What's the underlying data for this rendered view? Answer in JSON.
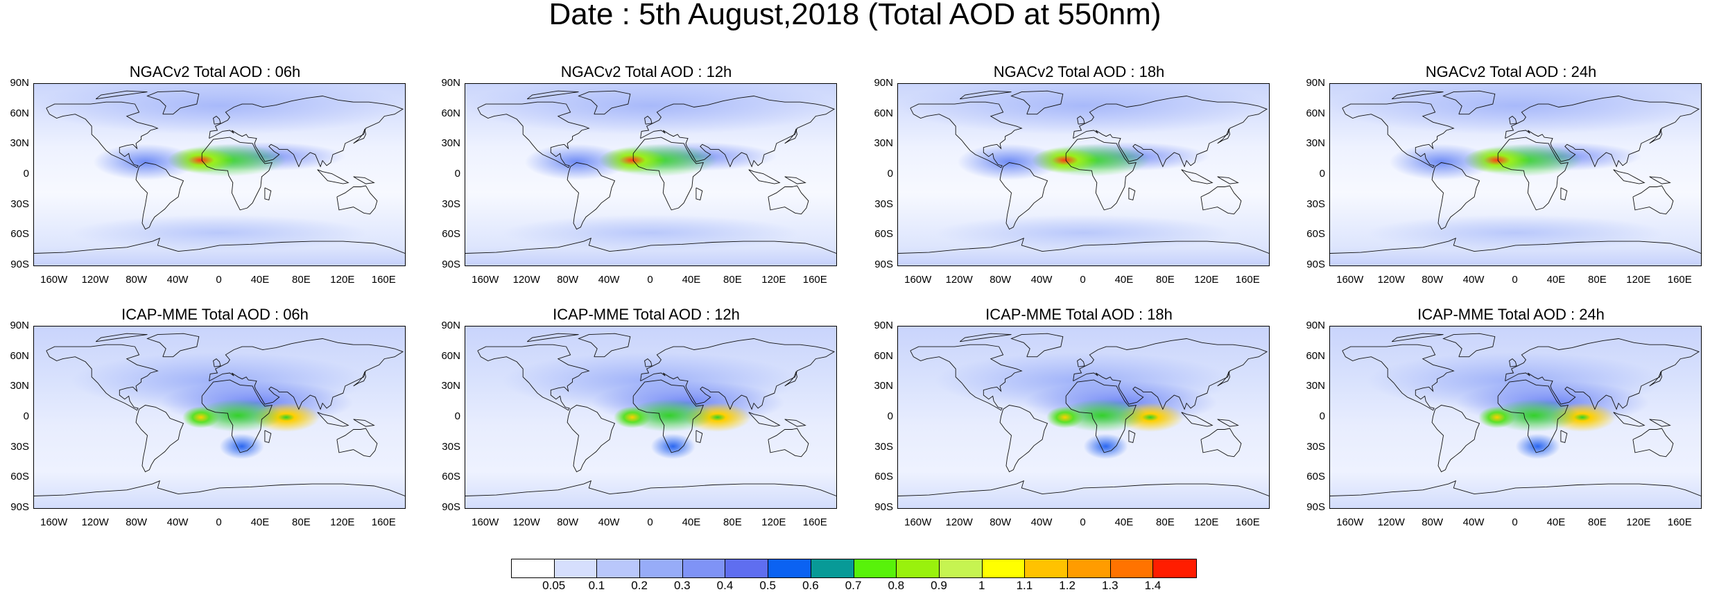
{
  "main_title": "Date : 5th August,2018 (Total AOD at 550nm)",
  "panels": [
    {
      "title": "NGACv2 Total AOD : 06h",
      "model": "ngac"
    },
    {
      "title": "NGACv2 Total AOD : 12h",
      "model": "ngac"
    },
    {
      "title": "NGACv2 Total AOD : 18h",
      "model": "ngac"
    },
    {
      "title": "NGACv2 Total AOD : 24h",
      "model": "ngac"
    },
    {
      "title": "ICAP-MME Total AOD : 06h",
      "model": "icap"
    },
    {
      "title": "ICAP-MME Total AOD : 12h",
      "model": "icap"
    },
    {
      "title": "ICAP-MME Total AOD : 18h",
      "model": "icap"
    },
    {
      "title": "ICAP-MME Total AOD : 24h",
      "model": "icap"
    }
  ],
  "lat_ticks": [
    "90N",
    "60N",
    "30N",
    "0",
    "30S",
    "60S",
    "90S"
  ],
  "lon_ticks": [
    "160W",
    "120W",
    "80W",
    "40W",
    "0",
    "40E",
    "80E",
    "120E",
    "160E"
  ],
  "lon_tick_values": [
    -160,
    -120,
    -80,
    -40,
    0,
    40,
    80,
    120,
    160
  ],
  "colorbar": {
    "colors": [
      "#ffffff",
      "#d6dffd",
      "#b9c7fb",
      "#97acf8",
      "#7f93f6",
      "#5f6ef0",
      "#0b62f2",
      "#089a97",
      "#58f20a",
      "#99f10d",
      "#c6f451",
      "#ffff00",
      "#ffc200",
      "#ff9c00",
      "#ff7300",
      "#ff1d00"
    ],
    "labels": [
      "0.05",
      "0.1",
      "0.2",
      "0.3",
      "0.4",
      "0.5",
      "0.6",
      "0.7",
      "0.8",
      "0.9",
      "1",
      "1.1",
      "1.2",
      "1.3",
      "1.4"
    ]
  }
}
